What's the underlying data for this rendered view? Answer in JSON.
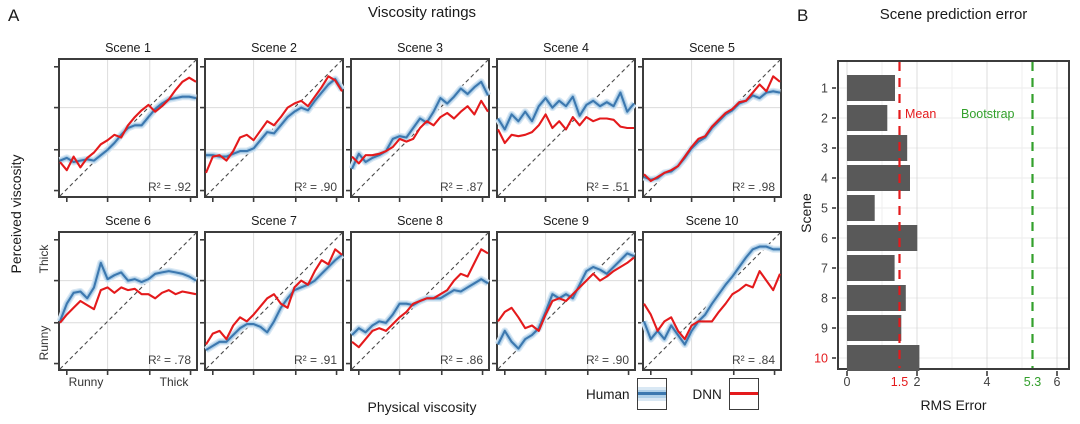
{
  "figure": {
    "panel_a_label": "A",
    "panel_b_label": "B"
  },
  "colors": {
    "human_blue": "#3c78af",
    "human_ribbon_inner": "#b0d0e8",
    "human_ribbon_outer": "#d9e8f4",
    "dnn_red": "#e41a1c",
    "bootstrap_green": "#33a02c",
    "bar_gray": "#595959",
    "grid_gray": "#dcdcdc",
    "grid_minor": "#efefef",
    "border_gray": "#3c3c3c",
    "diagonal_gray": "#4a4a4a",
    "tick_text": "#404040"
  },
  "panel_a": {
    "title": "Viscosity ratings",
    "y_axis_label": "Perceived viscosity",
    "x_axis_label": "Physical viscosity",
    "y_tick_top": "Thick",
    "y_tick_bottom": "Runny",
    "x_tick_left": "Runny",
    "x_tick_right": "Thick",
    "legend": {
      "human_label": "Human",
      "dnn_label": "DNN"
    }
  },
  "panel_b": {
    "title": "Scene prediction error",
    "y_axis_label": "Scene",
    "x_axis_label": "RMS Error",
    "mean_label": "Mean",
    "bootstrap_label": "Bootstrap",
    "x_ticks": [
      {
        "label": "0",
        "value": 0,
        "color": "#404040"
      },
      {
        "label": "1.5",
        "value": 1.5,
        "color": "#e41a1c"
      },
      {
        "label": "2",
        "value": 2,
        "color": "#404040"
      },
      {
        "label": "4",
        "value": 4,
        "color": "#404040"
      },
      {
        "label": "5.3",
        "value": 5.3,
        "color": "#33a02c"
      },
      {
        "label": "6",
        "value": 6,
        "color": "#404040"
      }
    ]
  },
  "chart_data": [
    {
      "type": "line",
      "title": "Scene 1",
      "r2_label": "R² = .92",
      "units": "normalized 0-1, Runny to Thick",
      "diagonal": true,
      "series": [
        {
          "name": "Human",
          "values": [
            0.26,
            0.28,
            0.25,
            0.26,
            0.27,
            0.26,
            0.3,
            0.34,
            0.39,
            0.45,
            0.5,
            0.52,
            0.52,
            0.58,
            0.64,
            0.68,
            0.71,
            0.72,
            0.73,
            0.73,
            0.72
          ]
        },
        {
          "name": "DNN",
          "values": [
            0.25,
            0.19,
            0.29,
            0.21,
            0.28,
            0.32,
            0.38,
            0.41,
            0.45,
            0.43,
            0.52,
            0.58,
            0.63,
            0.67,
            0.62,
            0.66,
            0.71,
            0.78,
            0.84,
            0.87,
            0.84
          ]
        }
      ]
    },
    {
      "type": "line",
      "title": "Scene 2",
      "r2_label": "R² = .90",
      "units": "normalized 0-1, Runny to Thick",
      "diagonal": true,
      "series": [
        {
          "name": "Human",
          "values": [
            0.3,
            0.3,
            0.29,
            0.29,
            0.31,
            0.33,
            0.33,
            0.35,
            0.41,
            0.47,
            0.46,
            0.52,
            0.58,
            0.62,
            0.65,
            0.63,
            0.7,
            0.76,
            0.82,
            0.86,
            0.78
          ]
        },
        {
          "name": "DNN",
          "values": [
            0.17,
            0.29,
            0.3,
            0.26,
            0.33,
            0.43,
            0.45,
            0.41,
            0.48,
            0.55,
            0.52,
            0.58,
            0.65,
            0.68,
            0.7,
            0.66,
            0.73,
            0.8,
            0.88,
            0.85,
            0.77
          ]
        }
      ]
    },
    {
      "type": "line",
      "title": "Scene 3",
      "r2_label": "R² = .87",
      "units": "normalized 0-1, Runny to Thick",
      "diagonal": true,
      "series": [
        {
          "name": "Human",
          "values": [
            0.2,
            0.31,
            0.25,
            0.28,
            0.3,
            0.33,
            0.42,
            0.44,
            0.43,
            0.5,
            0.57,
            0.54,
            0.62,
            0.72,
            0.68,
            0.73,
            0.79,
            0.75,
            0.8,
            0.84,
            0.74
          ]
        },
        {
          "name": "DNN",
          "values": [
            0.29,
            0.24,
            0.3,
            0.3,
            0.31,
            0.33,
            0.36,
            0.42,
            0.4,
            0.42,
            0.5,
            0.55,
            0.52,
            0.58,
            0.61,
            0.57,
            0.62,
            0.66,
            0.6,
            0.7,
            0.62
          ]
        }
      ]
    },
    {
      "type": "line",
      "title": "Scene 4",
      "r2_label": "R² = .51",
      "units": "normalized 0-1, Runny to Thick",
      "diagonal": true,
      "series": [
        {
          "name": "Human",
          "values": [
            0.57,
            0.49,
            0.6,
            0.55,
            0.62,
            0.55,
            0.66,
            0.72,
            0.65,
            0.7,
            0.66,
            0.73,
            0.59,
            0.67,
            0.7,
            0.66,
            0.69,
            0.66,
            0.76,
            0.62,
            0.68
          ]
        },
        {
          "name": "DNN",
          "values": [
            0.49,
            0.39,
            0.45,
            0.44,
            0.45,
            0.47,
            0.52,
            0.6,
            0.5,
            0.55,
            0.49,
            0.58,
            0.52,
            0.58,
            0.55,
            0.57,
            0.57,
            0.56,
            0.51,
            0.5,
            0.5
          ]
        }
      ]
    },
    {
      "type": "line",
      "title": "Scene 5",
      "r2_label": "R² = .98",
      "units": "normalized 0-1, Runny to Thick",
      "diagonal": true,
      "series": [
        {
          "name": "Human",
          "values": [
            0.14,
            0.12,
            0.13,
            0.17,
            0.18,
            0.22,
            0.28,
            0.35,
            0.4,
            0.43,
            0.5,
            0.55,
            0.6,
            0.63,
            0.68,
            0.7,
            0.74,
            0.72,
            0.76,
            0.77,
            0.76
          ]
        },
        {
          "name": "DNN",
          "values": [
            0.16,
            0.11,
            0.14,
            0.17,
            0.19,
            0.22,
            0.29,
            0.36,
            0.42,
            0.44,
            0.51,
            0.56,
            0.61,
            0.64,
            0.69,
            0.7,
            0.76,
            0.82,
            0.77,
            0.88,
            0.84
          ]
        }
      ]
    },
    {
      "type": "line",
      "title": "Scene 6",
      "r2_label": "R² = .78",
      "units": "normalized 0-1, Runny to Thick",
      "diagonal": true,
      "series": [
        {
          "name": "Human",
          "values": [
            0.35,
            0.48,
            0.56,
            0.57,
            0.52,
            0.6,
            0.78,
            0.66,
            0.69,
            0.71,
            0.65,
            0.66,
            0.64,
            0.66,
            0.7,
            0.71,
            0.72,
            0.71,
            0.7,
            0.68,
            0.65
          ]
        },
        {
          "name": "DNN",
          "values": [
            0.34,
            0.4,
            0.45,
            0.5,
            0.47,
            0.44,
            0.58,
            0.6,
            0.56,
            0.6,
            0.58,
            0.59,
            0.55,
            0.55,
            0.52,
            0.56,
            0.58,
            0.55,
            0.57,
            0.56,
            0.55
          ]
        }
      ]
    },
    {
      "type": "line",
      "title": "Scene 7",
      "r2_label": "R² = .91",
      "units": "normalized 0-1, Runny to Thick",
      "diagonal": true,
      "series": [
        {
          "name": "Human",
          "values": [
            0.14,
            0.17,
            0.2,
            0.2,
            0.25,
            0.3,
            0.33,
            0.33,
            0.31,
            0.27,
            0.35,
            0.45,
            0.52,
            0.58,
            0.6,
            0.62,
            0.65,
            0.7,
            0.75,
            0.8,
            0.84
          ]
        },
        {
          "name": "DNN",
          "values": [
            0.18,
            0.26,
            0.28,
            0.22,
            0.32,
            0.38,
            0.35,
            0.4,
            0.46,
            0.52,
            0.55,
            0.48,
            0.45,
            0.6,
            0.65,
            0.62,
            0.72,
            0.8,
            0.77,
            0.88,
            0.84
          ]
        }
      ]
    },
    {
      "type": "line",
      "title": "Scene 8",
      "r2_label": "R² = .86",
      "units": "normalized 0-1, Runny to Thick",
      "diagonal": true,
      "series": [
        {
          "name": "Human",
          "values": [
            0.25,
            0.3,
            0.27,
            0.32,
            0.35,
            0.34,
            0.4,
            0.48,
            0.48,
            0.47,
            0.5,
            0.52,
            0.52,
            0.52,
            0.55,
            0.58,
            0.57,
            0.6,
            0.63,
            0.66,
            0.63
          ]
        },
        {
          "name": "DNN",
          "values": [
            0.2,
            0.16,
            0.22,
            0.28,
            0.3,
            0.28,
            0.33,
            0.38,
            0.42,
            0.48,
            0.5,
            0.52,
            0.52,
            0.55,
            0.58,
            0.65,
            0.7,
            0.68,
            0.78,
            0.88,
            0.85
          ]
        }
      ]
    },
    {
      "type": "line",
      "title": "Scene 9",
      "r2_label": "R² = .90",
      "units": "normalized 0-1, Runny to Thick",
      "diagonal": true,
      "series": [
        {
          "name": "Human",
          "values": [
            0.18,
            0.28,
            0.2,
            0.15,
            0.22,
            0.25,
            0.3,
            0.42,
            0.55,
            0.52,
            0.55,
            0.52,
            0.62,
            0.72,
            0.75,
            0.73,
            0.7,
            0.75,
            0.8,
            0.85,
            0.83
          ]
        },
        {
          "name": "DNN",
          "values": [
            0.35,
            0.42,
            0.45,
            0.38,
            0.3,
            0.32,
            0.28,
            0.4,
            0.5,
            0.52,
            0.5,
            0.55,
            0.6,
            0.65,
            0.7,
            0.65,
            0.68,
            0.72,
            0.75,
            0.78,
            0.82
          ]
        }
      ]
    },
    {
      "type": "line",
      "title": "Scene 10",
      "r2_label": "R² = .84",
      "units": "normalized 0-1, Runny to Thick",
      "diagonal": true,
      "series": [
        {
          "name": "Human",
          "values": [
            0.35,
            0.22,
            0.28,
            0.22,
            0.32,
            0.25,
            0.18,
            0.28,
            0.35,
            0.4,
            0.48,
            0.55,
            0.62,
            0.68,
            0.75,
            0.82,
            0.88,
            0.9,
            0.9,
            0.88,
            0.88
          ]
        },
        {
          "name": "DNN",
          "values": [
            0.48,
            0.4,
            0.28,
            0.35,
            0.38,
            0.28,
            0.22,
            0.32,
            0.35,
            0.35,
            0.35,
            0.42,
            0.48,
            0.55,
            0.58,
            0.62,
            0.6,
            0.72,
            0.65,
            0.58,
            0.7
          ]
        }
      ]
    },
    {
      "type": "bar",
      "orientation": "horizontal",
      "title": "Scene prediction error",
      "categories": [
        "1",
        "2",
        "3",
        "4",
        "5",
        "6",
        "7",
        "8",
        "9",
        "10"
      ],
      "values": [
        1.37,
        1.15,
        1.72,
        1.8,
        0.79,
        2.01,
        1.36,
        1.68,
        1.55,
        2.07
      ],
      "xlabel": "RMS Error",
      "ylabel": "Scene",
      "xlim": [
        0,
        6.3
      ],
      "xticks": [
        0,
        2,
        4,
        6
      ],
      "highlight_category": "10",
      "highlight_color": "#e41a1c",
      "reference_lines": [
        {
          "label": "Mean",
          "value": 1.5,
          "color": "#e41a1c"
        },
        {
          "label": "Bootstrap",
          "value": 5.3,
          "color": "#33a02c"
        }
      ]
    }
  ]
}
